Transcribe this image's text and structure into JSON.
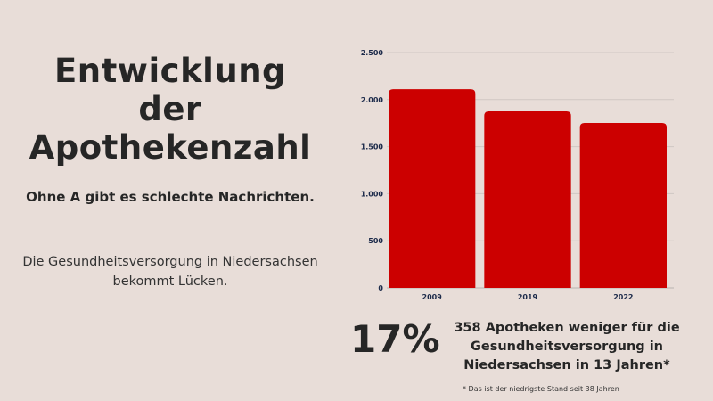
{
  "title_lines": [
    "Entwicklung",
    "der",
    "Apothekenzahl"
  ],
  "subtitle": "Ohne A gibt es schlechte Nachrichten.",
  "body_lines": [
    "Die Gesundheitsversorgung in Niedersachsen",
    "bekommt Lücken."
  ],
  "stat": {
    "percent": "17%",
    "description_lines": [
      "358 Apotheken weniger für die",
      "Gesundheitsversorgung in",
      "Niedersachsen in 13 Jahren*"
    ]
  },
  "footnote": "* Das ist der niedrigste Stand seit 38 Jahren",
  "colors": {
    "bar": "#cc0000",
    "background": "#e8ddd8",
    "text": "#262626",
    "axis_text": "#1c2a4a"
  },
  "chart_data": {
    "type": "bar",
    "categories": [
      "2009",
      "2019",
      "2022"
    ],
    "values": [
      2110,
      1875,
      1752
    ],
    "ylim": [
      0,
      2500
    ],
    "yticks": [
      0,
      500,
      1000,
      1500,
      2000,
      2500
    ],
    "ytick_labels": [
      "0",
      "500",
      "1.000",
      "1.500",
      "2.000",
      "2.500"
    ],
    "grid": true,
    "title": "",
    "xlabel": "",
    "ylabel": ""
  }
}
